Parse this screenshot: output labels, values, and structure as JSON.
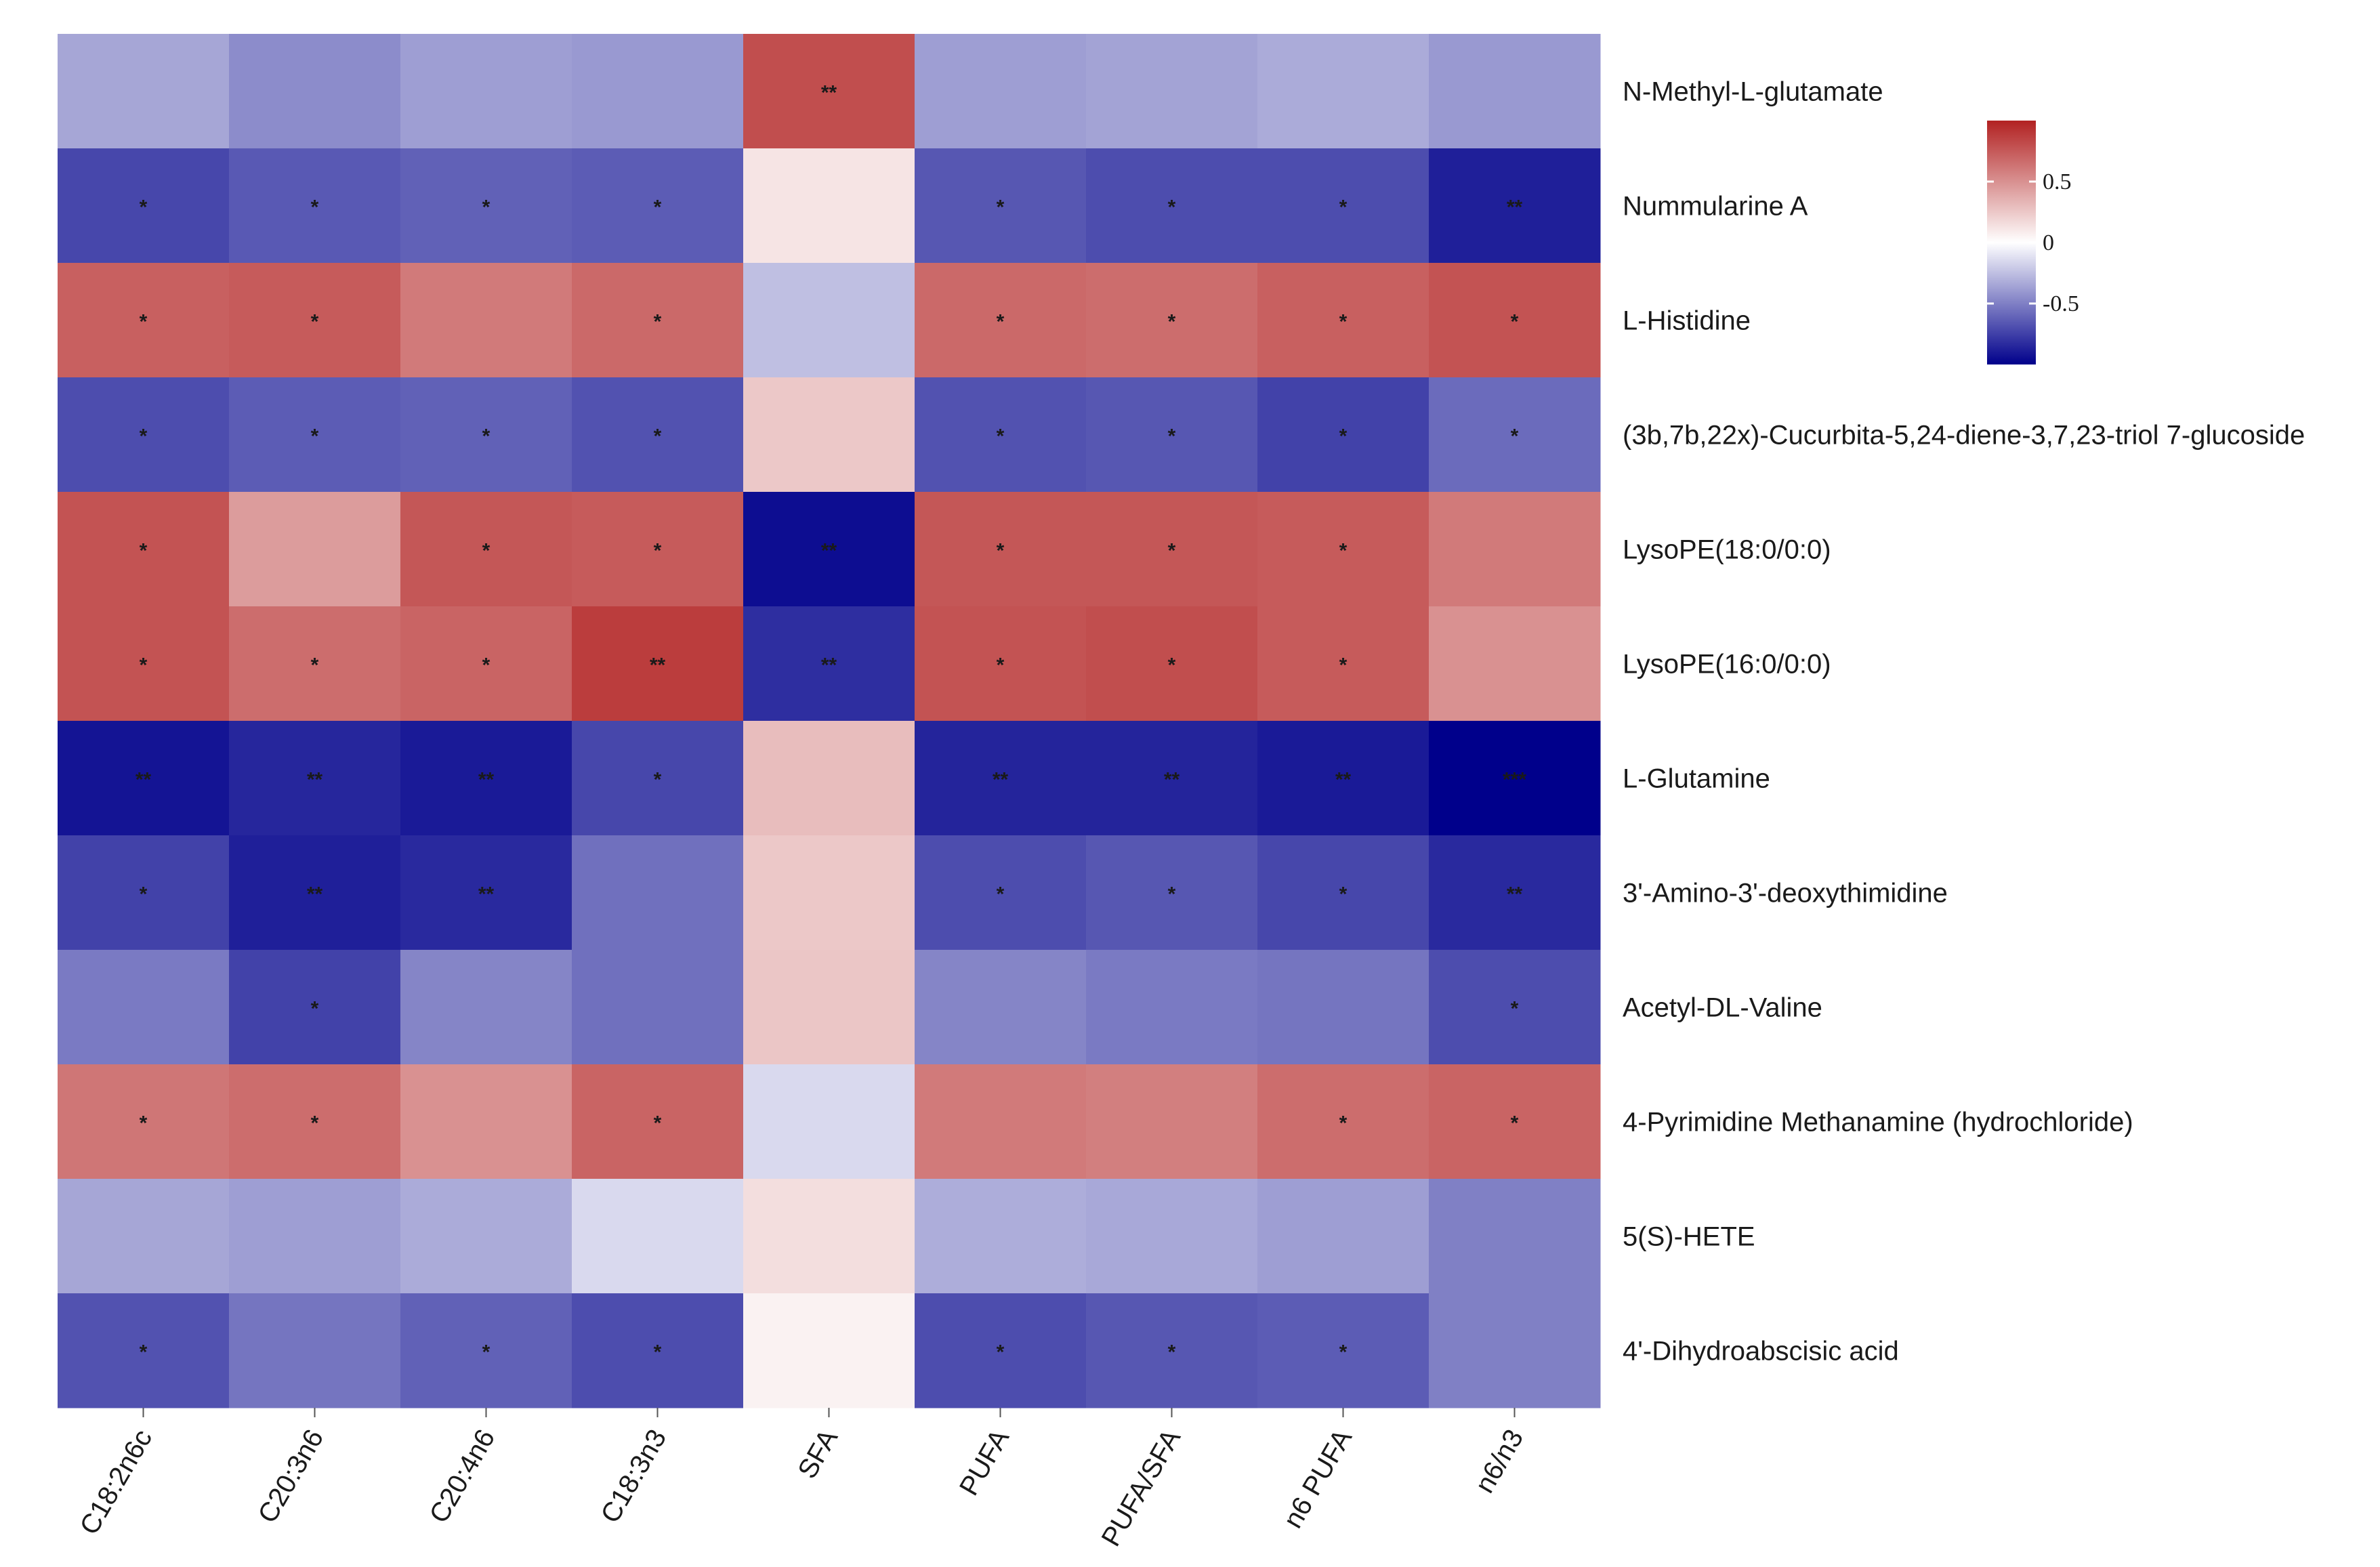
{
  "chart_data": {
    "type": "heatmap",
    "title": "",
    "xlabel": "",
    "ylabel": "",
    "columns": [
      "C18:2n6c",
      "C20:3n6",
      "C20:4n6",
      "C18:3n3",
      "SFA",
      "PUFA",
      "PUFA/SFA",
      "n6 PUFA",
      "n6/n3"
    ],
    "rows": [
      "N-Methyl-L-glutamate",
      "Nummularine A",
      "L-Histidine",
      "(3b,7b,22x)-Cucurbita-5,24-diene-3,7,23-triol 7-glucoside",
      "LysoPE(18:0/0:0)",
      "LysoPE(16:0/0:0)",
      "L-Glutamine",
      "3'-Amino-3'-deoxythimidine",
      "Acetyl-DL-Valine",
      "4-Pyrimidine Methanamine (hydrochloride)",
      "5(S)-HETE",
      "4'-Dihydroabscisic acid"
    ],
    "values": [
      [
        -0.35,
        -0.45,
        -0.38,
        -0.4,
        0.8,
        -0.38,
        -0.36,
        -0.33,
        -0.4
      ],
      [
        -0.72,
        -0.65,
        -0.62,
        -0.64,
        0.12,
        -0.66,
        -0.7,
        -0.7,
        -0.88
      ],
      [
        0.72,
        0.74,
        0.6,
        0.68,
        -0.25,
        0.68,
        0.66,
        0.72,
        0.78
      ],
      [
        -0.7,
        -0.64,
        -0.62,
        -0.68,
        0.25,
        -0.68,
        -0.66,
        -0.74,
        -0.58
      ],
      [
        0.78,
        0.45,
        0.76,
        0.74,
        -0.95,
        0.76,
        0.76,
        0.74,
        0.6
      ],
      [
        0.78,
        0.66,
        0.7,
        0.88,
        -0.82,
        0.78,
        0.8,
        0.74,
        0.5
      ],
      [
        -0.92,
        -0.85,
        -0.9,
        -0.72,
        0.3,
        -0.86,
        -0.86,
        -0.9,
        -1.0
      ],
      [
        -0.74,
        -0.88,
        -0.84,
        -0.56,
        0.25,
        -0.7,
        -0.66,
        -0.72,
        -0.84
      ],
      [
        -0.52,
        -0.74,
        -0.48,
        -0.56,
        0.26,
        -0.48,
        -0.52,
        -0.54,
        -0.7
      ],
      [
        0.62,
        0.66,
        0.5,
        0.7,
        -0.15,
        0.6,
        0.58,
        0.66,
        0.7
      ],
      [
        -0.35,
        -0.38,
        -0.33,
        -0.15,
        0.15,
        -0.32,
        -0.34,
        -0.38,
        -0.5
      ],
      [
        -0.68,
        -0.54,
        -0.62,
        -0.7,
        0.06,
        -0.7,
        -0.66,
        -0.64,
        -0.5
      ]
    ],
    "significance": [
      [
        "",
        "",
        "",
        "",
        "**",
        "",
        "",
        "",
        ""
      ],
      [
        "*",
        "*",
        "*",
        "*",
        "",
        "*",
        "*",
        "*",
        "**"
      ],
      [
        "*",
        "*",
        "",
        "*",
        "",
        "*",
        "*",
        "*",
        "*"
      ],
      [
        "*",
        "*",
        "*",
        "*",
        "",
        "*",
        "*",
        "*",
        "*"
      ],
      [
        "*",
        "",
        "*",
        "*",
        "**",
        "*",
        "*",
        "*",
        ""
      ],
      [
        "*",
        "*",
        "*",
        "**",
        "**",
        "*",
        "*",
        "*",
        ""
      ],
      [
        "**",
        "**",
        "**",
        "*",
        "",
        "**",
        "**",
        "**",
        "***"
      ],
      [
        "*",
        "**",
        "**",
        "",
        "",
        "*",
        "*",
        "*",
        "**"
      ],
      [
        "",
        "*",
        "",
        "",
        "",
        "",
        "",
        "",
        "*"
      ],
      [
        "*",
        "*",
        "",
        "*",
        "",
        "",
        "",
        "*",
        "*"
      ],
      [
        "",
        "",
        "",
        "",
        "",
        "",
        "",
        "",
        ""
      ],
      [
        "*",
        "",
        "*",
        "*",
        "",
        "*",
        "*",
        "*",
        ""
      ]
    ],
    "color_scale": {
      "low": "#00008b",
      "mid": "#ffffff",
      "high": "#b22222",
      "range": [
        -1,
        1
      ],
      "ticks": [
        0.5,
        0,
        -0.5
      ],
      "tick_labels": [
        "0.5",
        "0",
        "-0.5"
      ]
    },
    "legend_position": "top-right"
  }
}
